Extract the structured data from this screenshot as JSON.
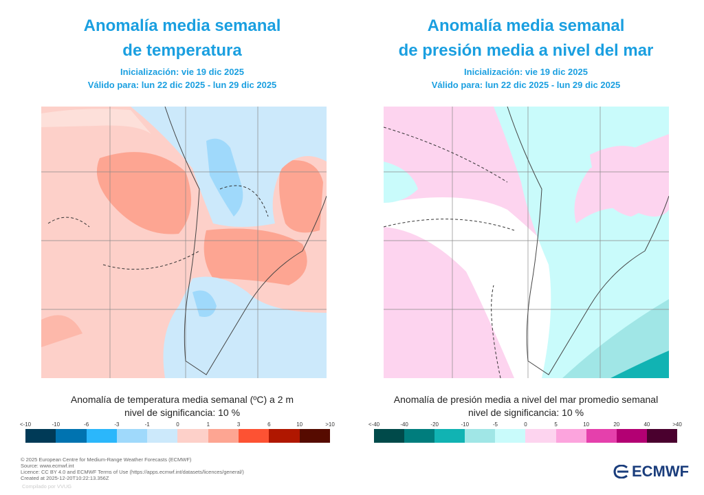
{
  "left": {
    "title_line1": "Anomalía media semanal",
    "title_line2": "de temperatura",
    "init": "Inicialización: vie 19 dic 2025",
    "valid": "Válido para: lun 22 dic 2025 - lun 29 dic 2025",
    "caption": "Anomalía de temperatura media semanal (ºC) a 2 m",
    "significance": "nivel de significancia: 10 %",
    "legend_labels": [
      "<-10",
      "-10",
      "-6",
      "-3",
      "-1",
      "0",
      "1",
      "3",
      "6",
      "10",
      ">10"
    ],
    "legend_colors": [
      "#003a57",
      "#0073b0",
      "#2bb7fb",
      "#9fd9fb",
      "#cce9fb",
      "#fdd0c9",
      "#fda592",
      "#fd5233",
      "#b01700",
      "#560b00"
    ]
  },
  "right": {
    "title_line1": "Anomalía media semanal",
    "title_line2": "de presión media a nivel del mar",
    "init": "Inicialización: vie 19 dic 2025",
    "valid": "Válido para: lun 22 dic 2025 - lun 29 dic 2025",
    "caption": "Anomalía de presión media a nivel del mar promedio semanal",
    "significance": "nivel de significancia: 10 %",
    "legend_labels": [
      "<-40",
      "-40",
      "-20",
      "-10",
      "-5",
      "0",
      "5",
      "10",
      "20",
      "40",
      ">40"
    ],
    "legend_colors": [
      "#004a4a",
      "#007d7d",
      "#11b3b3",
      "#a0e6e6",
      "#c9fbfb",
      "#fdd4ef",
      "#fca4dd",
      "#e540ac",
      "#b30073",
      "#4a002e"
    ]
  },
  "footer": {
    "lines": [
      "© 2025 European Centre for Medium-Range Weather Forecasts (ECMWF)",
      "Source: www.ecmwf.int",
      "Licence: CC BY 4.0 and ECMWF Terms of Use (https://apps.ecmwf.int/datasets/licences/general/)",
      "Created at 2025-12-20T10:22:13.356Z"
    ],
    "compiled": "Compilado por VVUG",
    "logo": "ECMWF"
  },
  "chart_data": [
    {
      "type": "heatmap",
      "title": "Anomalía media semanal de temperatura",
      "colorbar_label": "Anomalía de temperatura media semanal (ºC) a 2 m",
      "bins": [
        "<-10",
        "-10",
        "-6",
        "-3",
        "-1",
        "0",
        "1",
        "3",
        "6",
        "10",
        ">10"
      ],
      "region": "Southern South America"
    },
    {
      "type": "heatmap",
      "title": "Anomalía media semanal de presión media a nivel del mar",
      "colorbar_label": "Anomalía de presión media a nivel del mar promedio semanal",
      "bins": [
        "<-40",
        "-40",
        "-20",
        "-10",
        "-5",
        "0",
        "5",
        "10",
        "20",
        "40",
        ">40"
      ],
      "region": "Southern South America"
    }
  ]
}
